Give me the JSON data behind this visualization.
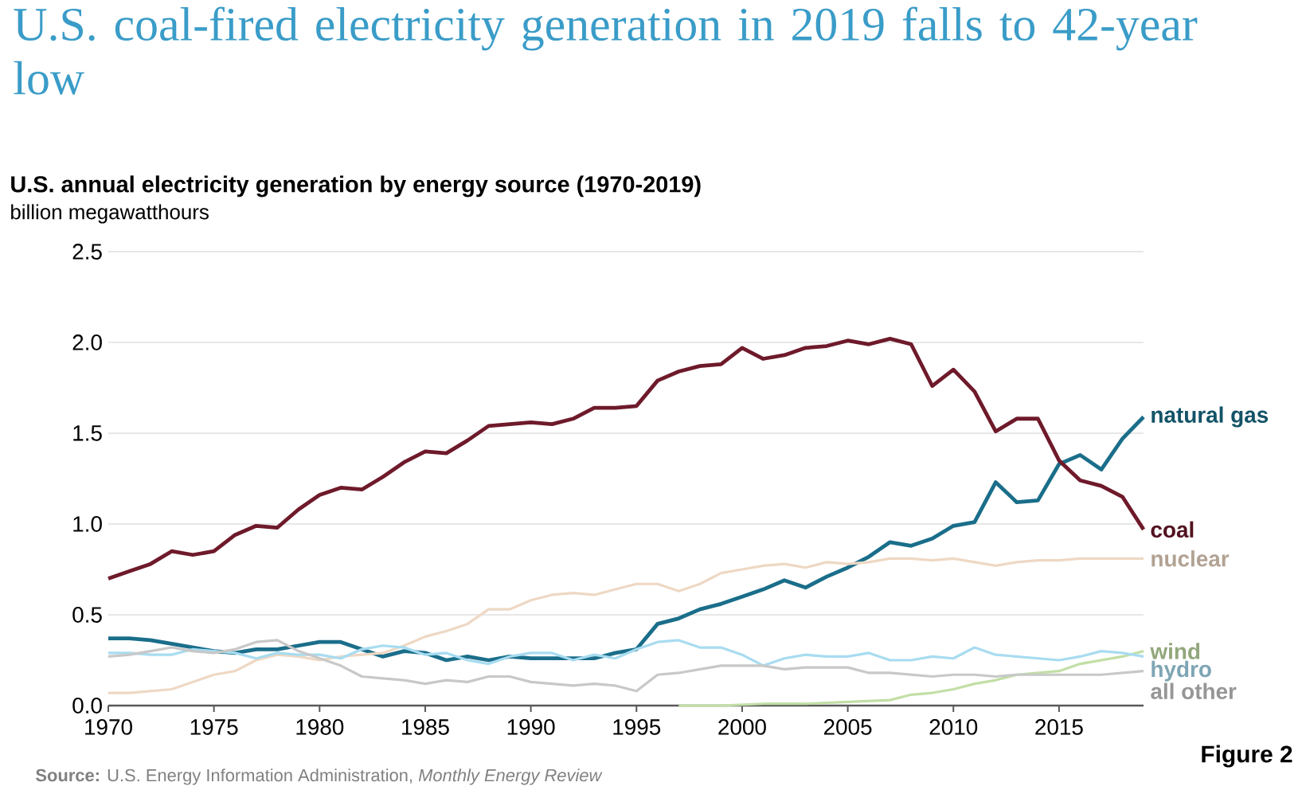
{
  "chart_data": {
    "type": "line",
    "title": "U.S. coal-fired electricity generation in 2019 falls to 42-year low",
    "subtitle": "U.S. annual electricity generation by energy source (1970-2019)",
    "ylabel": "billion megawatthours",
    "annotations": [
      "**Source:** U.S. Energy Information Administration, *Monthly Energy Review*",
      "Figure 2"
    ],
    "x": [
      1970,
      1971,
      1972,
      1973,
      1974,
      1975,
      1976,
      1977,
      1978,
      1979,
      1980,
      1981,
      1982,
      1983,
      1984,
      1985,
      1986,
      1987,
      1988,
      1989,
      1990,
      1991,
      1992,
      1993,
      1994,
      1995,
      1996,
      1997,
      1998,
      1999,
      2000,
      2001,
      2002,
      2003,
      2004,
      2005,
      2006,
      2007,
      2008,
      2009,
      2010,
      2011,
      2012,
      2013,
      2014,
      2015,
      2016,
      2017,
      2018,
      2019
    ],
    "series": [
      {
        "name": "natural gas",
        "color": "#1a6e8a",
        "values": [
          0.37,
          0.37,
          0.36,
          0.34,
          0.32,
          0.3,
          0.29,
          0.31,
          0.31,
          0.33,
          0.35,
          0.35,
          0.31,
          0.27,
          0.3,
          0.29,
          0.25,
          0.27,
          0.25,
          0.27,
          0.26,
          0.26,
          0.26,
          0.26,
          0.29,
          0.31,
          0.45,
          0.48,
          0.53,
          0.56,
          0.6,
          0.64,
          0.69,
          0.65,
          0.71,
          0.76,
          0.82,
          0.9,
          0.88,
          0.92,
          0.99,
          1.01,
          1.23,
          1.12,
          1.13,
          1.33,
          1.38,
          1.3,
          1.47,
          1.59
        ]
      },
      {
        "name": "coal",
        "color": "#6e1a2b",
        "values": [
          0.7,
          0.74,
          0.78,
          0.85,
          0.83,
          0.85,
          0.94,
          0.99,
          0.98,
          1.08,
          1.16,
          1.2,
          1.19,
          1.26,
          1.34,
          1.4,
          1.39,
          1.46,
          1.54,
          1.55,
          1.56,
          1.55,
          1.58,
          1.64,
          1.64,
          1.65,
          1.79,
          1.84,
          1.87,
          1.88,
          1.97,
          1.91,
          1.93,
          1.97,
          1.98,
          2.01,
          1.99,
          2.02,
          1.99,
          1.76,
          1.85,
          1.73,
          1.51,
          1.58,
          1.58,
          1.35,
          1.24,
          1.21,
          1.15,
          0.97
        ]
      },
      {
        "name": "nuclear",
        "color": "#eed8c4",
        "values": [
          0.07,
          0.07,
          0.08,
          0.09,
          0.13,
          0.17,
          0.19,
          0.25,
          0.28,
          0.27,
          0.25,
          0.27,
          0.28,
          0.29,
          0.33,
          0.38,
          0.41,
          0.45,
          0.53,
          0.53,
          0.58,
          0.61,
          0.62,
          0.61,
          0.64,
          0.67,
          0.67,
          0.63,
          0.67,
          0.73,
          0.75,
          0.77,
          0.78,
          0.76,
          0.79,
          0.78,
          0.79,
          0.81,
          0.81,
          0.8,
          0.81,
          0.79,
          0.77,
          0.79,
          0.8,
          0.8,
          0.81,
          0.81,
          0.81,
          0.81
        ]
      },
      {
        "name": "wind",
        "color": "#c2dfa6",
        "x": [
          1997,
          1999,
          2001,
          2003,
          2005,
          2007,
          2008,
          2009,
          2010,
          2011,
          2012,
          2013,
          2014,
          2015,
          2016,
          2017,
          2018,
          2019
        ],
        "values": [
          0.0,
          0.0,
          0.01,
          0.01,
          0.02,
          0.03,
          0.06,
          0.07,
          0.09,
          0.12,
          0.14,
          0.17,
          0.18,
          0.19,
          0.23,
          0.25,
          0.27,
          0.3
        ]
      },
      {
        "name": "hydro",
        "color": "#a8dcf0",
        "values": [
          0.29,
          0.29,
          0.28,
          0.28,
          0.31,
          0.3,
          0.29,
          0.26,
          0.29,
          0.28,
          0.28,
          0.26,
          0.31,
          0.33,
          0.32,
          0.28,
          0.29,
          0.25,
          0.23,
          0.27,
          0.29,
          0.29,
          0.25,
          0.28,
          0.26,
          0.31,
          0.35,
          0.36,
          0.32,
          0.32,
          0.28,
          0.22,
          0.26,
          0.28,
          0.27,
          0.27,
          0.29,
          0.25,
          0.25,
          0.27,
          0.26,
          0.32,
          0.28,
          0.27,
          0.26,
          0.25,
          0.27,
          0.3,
          0.29,
          0.27
        ]
      },
      {
        "name": "all other",
        "color": "#c8c8c8",
        "values": [
          0.27,
          0.28,
          0.3,
          0.32,
          0.3,
          0.29,
          0.31,
          0.35,
          0.36,
          0.3,
          0.26,
          0.22,
          0.16,
          0.15,
          0.14,
          0.12,
          0.14,
          0.13,
          0.16,
          0.16,
          0.13,
          0.12,
          0.11,
          0.12,
          0.11,
          0.08,
          0.17,
          0.18,
          0.2,
          0.22,
          0.22,
          0.22,
          0.2,
          0.21,
          0.21,
          0.21,
          0.18,
          0.18,
          0.17,
          0.16,
          0.17,
          0.17,
          0.16,
          0.17,
          0.17,
          0.17,
          0.17,
          0.17,
          0.18,
          0.19
        ]
      }
    ],
    "xlim": [
      1970,
      2019
    ],
    "xticks": [
      1970,
      1975,
      1980,
      1985,
      1990,
      1995,
      2000,
      2005,
      2010,
      2015
    ],
    "ylim": [
      0,
      2.5
    ],
    "yticks": [
      {
        "value": 0,
        "label": "0.0"
      },
      0.5,
      {
        "value": 1,
        "label": "1.0"
      },
      1.5,
      {
        "value": 2,
        "label": "2.0"
      },
      2.5
    ],
    "grid": "y",
    "marker": "none",
    "line_style": "solid"
  }
}
